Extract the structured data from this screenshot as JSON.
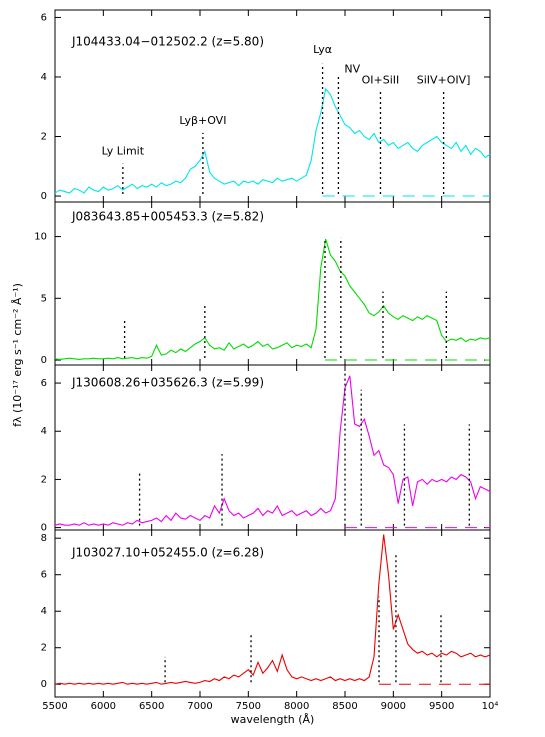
{
  "ylabel": "fλ (10⁻¹⁷ erg s⁻¹ cm⁻² Å⁻¹)",
  "chart_data": [
    {
      "type": "line",
      "title": "J104433.04−012502.2 (z=5.80)",
      "ylim": [
        -0.2,
        6.25
      ],
      "yticks": [
        0,
        2,
        4,
        6
      ],
      "lines": [
        6202,
        7030,
        8268,
        8432,
        8867,
        9520
      ],
      "line_labels": [
        "Ly Limit",
        "Lyβ+OVI",
        "Lyα",
        "NV",
        "OI+SiII",
        "SiIV+OIV]"
      ],
      "x": [
        5500,
        5550,
        5600,
        5650,
        5700,
        5750,
        5800,
        5850,
        5900,
        5950,
        6000,
        6050,
        6100,
        6150,
        6200,
        6250,
        6300,
        6350,
        6400,
        6450,
        6500,
        6550,
        6600,
        6650,
        6700,
        6750,
        6800,
        6850,
        6900,
        6950,
        7000,
        7050,
        7100,
        7150,
        7200,
        7250,
        7300,
        7350,
        7400,
        7450,
        7500,
        7550,
        7600,
        7650,
        7700,
        7750,
        7800,
        7850,
        7900,
        7950,
        8000,
        8050,
        8100,
        8150,
        8200,
        8250,
        8300,
        8350,
        8400,
        8450,
        8500,
        8550,
        8600,
        8650,
        8700,
        8750,
        8800,
        8850,
        8900,
        8950,
        9000,
        9050,
        9100,
        9150,
        9200,
        9250,
        9300,
        9350,
        9400,
        9450,
        9500,
        9550,
        9600,
        9650,
        9700,
        9750,
        9800,
        9850,
        9900,
        9950,
        10000
      ],
      "series": [
        {
          "color": "#00e5ee",
          "values": [
            0.1,
            0.2,
            0.15,
            0.1,
            0.25,
            0.2,
            0.1,
            0.3,
            0.2,
            0.15,
            0.3,
            0.2,
            0.25,
            0.35,
            0.2,
            0.3,
            0.4,
            0.25,
            0.35,
            0.3,
            0.4,
            0.3,
            0.45,
            0.35,
            0.4,
            0.5,
            0.45,
            0.6,
            0.9,
            1.0,
            1.2,
            1.5,
            0.8,
            0.6,
            0.5,
            0.4,
            0.45,
            0.5,
            0.35,
            0.5,
            0.45,
            0.5,
            0.4,
            0.55,
            0.5,
            0.45,
            0.6,
            0.5,
            0.55,
            0.6,
            0.5,
            0.6,
            0.7,
            1.2,
            2.2,
            2.8,
            3.6,
            3.4,
            3.0,
            2.7,
            2.4,
            2.3,
            2.1,
            2.2,
            2.0,
            1.9,
            2.1,
            1.8,
            1.9,
            1.7,
            1.8,
            1.6,
            1.7,
            1.8,
            1.6,
            1.5,
            1.7,
            1.8,
            1.9,
            2.0,
            1.8,
            1.7,
            1.6,
            1.8,
            1.5,
            1.7,
            1.4,
            1.6,
            1.5,
            1.3,
            1.4
          ]
        }
      ]
    },
    {
      "type": "line",
      "title": "J083643.85+005453.3 (z=5.82)",
      "ylim": [
        -0.4,
        12.8
      ],
      "yticks": [
        0,
        5,
        10
      ],
      "lines": [
        6220,
        7050,
        8293,
        8457,
        8893,
        9548
      ],
      "x": [
        5500,
        5550,
        5600,
        5650,
        5700,
        5750,
        5800,
        5850,
        5900,
        5950,
        6000,
        6050,
        6100,
        6150,
        6200,
        6250,
        6300,
        6350,
        6400,
        6450,
        6500,
        6550,
        6600,
        6650,
        6700,
        6750,
        6800,
        6850,
        6900,
        6950,
        7000,
        7050,
        7100,
        7150,
        7200,
        7250,
        7300,
        7350,
        7400,
        7450,
        7500,
        7550,
        7600,
        7650,
        7700,
        7750,
        7800,
        7850,
        7900,
        7950,
        8000,
        8050,
        8100,
        8150,
        8200,
        8250,
        8300,
        8350,
        8400,
        8450,
        8500,
        8550,
        8600,
        8650,
        8700,
        8750,
        8800,
        8850,
        8900,
        8950,
        9000,
        9050,
        9100,
        9150,
        9200,
        9250,
        9300,
        9350,
        9400,
        9450,
        9500,
        9550,
        9600,
        9650,
        9700,
        9750,
        9800,
        9850,
        9900,
        9950,
        10000
      ],
      "series": [
        {
          "color": "#00dd00",
          "values": [
            0.1,
            0.05,
            0.1,
            0.15,
            0.1,
            0.05,
            0.1,
            0.1,
            0.15,
            0.1,
            0.1,
            0.15,
            0.1,
            0.2,
            0.1,
            0.15,
            0.2,
            0.1,
            0.2,
            0.15,
            0.3,
            1.2,
            0.4,
            0.5,
            0.8,
            0.6,
            0.9,
            0.7,
            1.0,
            1.3,
            1.5,
            1.8,
            1.2,
            0.9,
            1.0,
            0.8,
            1.4,
            0.9,
            1.1,
            1.3,
            1.0,
            1.2,
            1.5,
            1.1,
            1.3,
            0.9,
            1.0,
            1.2,
            1.4,
            1.0,
            1.2,
            1.1,
            1.3,
            1.0,
            2.5,
            7.5,
            9.8,
            8.5,
            8.0,
            7.2,
            6.8,
            6.0,
            5.5,
            5.0,
            4.5,
            3.8,
            3.6,
            3.9,
            4.4,
            3.8,
            3.5,
            3.3,
            3.6,
            3.4,
            3.2,
            3.5,
            3.3,
            3.6,
            3.4,
            3.2,
            2.0,
            1.5,
            1.7,
            1.6,
            1.8,
            1.5,
            1.7,
            1.6,
            1.8,
            1.7,
            1.8
          ]
        }
      ]
    },
    {
      "type": "line",
      "title": "J130608.26+035626.3 (z=5.99)",
      "ylim": [
        -0.1,
        6.75
      ],
      "yticks": [
        0,
        2,
        4,
        6
      ],
      "lines": [
        6375,
        7228,
        8500,
        8668,
        9115,
        9786
      ],
      "x": [
        5500,
        5550,
        5600,
        5650,
        5700,
        5750,
        5800,
        5850,
        5900,
        5950,
        6000,
        6050,
        6100,
        6150,
        6200,
        6250,
        6300,
        6350,
        6400,
        6450,
        6500,
        6550,
        6600,
        6650,
        6700,
        6750,
        6800,
        6850,
        6900,
        6950,
        7000,
        7050,
        7100,
        7150,
        7200,
        7250,
        7300,
        7350,
        7400,
        7450,
        7500,
        7550,
        7600,
        7650,
        7700,
        7750,
        7800,
        7850,
        7900,
        7950,
        8000,
        8050,
        8100,
        8150,
        8200,
        8250,
        8300,
        8350,
        8400,
        8450,
        8500,
        8550,
        8600,
        8650,
        8700,
        8750,
        8800,
        8850,
        8900,
        8950,
        9000,
        9050,
        9100,
        9150,
        9200,
        9250,
        9300,
        9350,
        9400,
        9450,
        9500,
        9550,
        9600,
        9650,
        9700,
        9750,
        9800,
        9850,
        9900,
        9950,
        10000
      ],
      "series": [
        {
          "color": "#ee00ee",
          "values": [
            0.1,
            0.15,
            0.1,
            0.1,
            0.15,
            0.1,
            0.2,
            0.1,
            0.15,
            0.1,
            0.15,
            0.1,
            0.2,
            0.15,
            0.1,
            0.2,
            0.15,
            0.3,
            0.2,
            0.25,
            0.3,
            0.4,
            0.25,
            0.5,
            0.3,
            0.6,
            0.4,
            0.35,
            0.5,
            0.4,
            0.3,
            0.5,
            0.4,
            0.9,
            0.6,
            1.2,
            0.7,
            0.5,
            0.6,
            0.4,
            0.5,
            0.6,
            0.8,
            0.5,
            0.7,
            0.6,
            0.9,
            0.5,
            0.6,
            0.7,
            0.5,
            0.6,
            0.7,
            0.5,
            0.6,
            0.8,
            0.6,
            0.7,
            1.2,
            4.0,
            5.8,
            6.3,
            4.3,
            4.2,
            4.5,
            3.8,
            3.0,
            3.2,
            2.6,
            2.5,
            2.2,
            1.0,
            2.0,
            2.1,
            0.9,
            1.9,
            2.0,
            1.8,
            2.0,
            1.9,
            2.0,
            1.9,
            2.1,
            2.0,
            2.2,
            2.1,
            1.9,
            1.2,
            1.7,
            1.6,
            1.5
          ]
        }
      ]
    },
    {
      "type": "line",
      "title": "J103027.10+052455.0 (z=6.28)",
      "xlabel": "wavelength (Å)",
      "xlim": [
        5500,
        10000
      ],
      "xticks": [
        5500,
        6000,
        6500,
        7000,
        7500,
        8000,
        8500,
        9000,
        9500,
        {
          "value": 10000,
          "label": "10⁴"
        }
      ],
      "ylim": [
        -0.7,
        8.45
      ],
      "yticks": [
        0,
        2,
        4,
        6,
        8
      ],
      "lines": [
        6639,
        7528,
        8852,
        9027,
        9493
      ],
      "x": [
        5500,
        5550,
        5600,
        5650,
        5700,
        5750,
        5800,
        5850,
        5900,
        5950,
        6000,
        6050,
        6100,
        6150,
        6200,
        6250,
        6300,
        6350,
        6400,
        6450,
        6500,
        6550,
        6600,
        6650,
        6700,
        6750,
        6800,
        6850,
        6900,
        6950,
        7000,
        7050,
        7100,
        7150,
        7200,
        7250,
        7300,
        7350,
        7400,
        7450,
        7500,
        7550,
        7600,
        7650,
        7700,
        7750,
        7800,
        7850,
        7900,
        7950,
        8000,
        8050,
        8100,
        8150,
        8200,
        8250,
        8300,
        8350,
        8400,
        8450,
        8500,
        8550,
        8600,
        8650,
        8700,
        8750,
        8800,
        8850,
        8900,
        8950,
        9000,
        9050,
        9100,
        9150,
        9200,
        9250,
        9300,
        9350,
        9400,
        9450,
        9500,
        9550,
        9600,
        9650,
        9700,
        9750,
        9800,
        9850,
        9900,
        9950,
        10000
      ],
      "series": [
        {
          "color": "#ee0000",
          "values": [
            0.0,
            0.05,
            0.0,
            0.05,
            0.0,
            0.05,
            0.0,
            0.05,
            0.0,
            0.05,
            0.0,
            0.05,
            0.0,
            0.05,
            0.1,
            0.0,
            0.05,
            0.0,
            0.05,
            0.0,
            0.05,
            0.1,
            0.0,
            0.05,
            0.1,
            0.05,
            0.1,
            0.15,
            0.1,
            0.05,
            0.1,
            0.2,
            0.15,
            0.3,
            0.2,
            0.4,
            0.3,
            0.5,
            0.4,
            0.6,
            0.8,
            0.5,
            1.2,
            0.6,
            0.9,
            1.3,
            0.7,
            1.6,
            0.8,
            0.4,
            0.3,
            0.4,
            0.3,
            0.2,
            0.3,
            0.2,
            0.3,
            0.4,
            0.2,
            0.3,
            0.2,
            0.3,
            0.2,
            0.3,
            0.2,
            0.4,
            1.5,
            5.5,
            8.2,
            6.0,
            3.0,
            3.8,
            3.0,
            2.2,
            1.9,
            1.7,
            1.8,
            1.6,
            1.7,
            1.5,
            1.7,
            1.6,
            1.8,
            1.7,
            1.5,
            1.6,
            1.7,
            1.5,
            1.6,
            1.5,
            1.6
          ]
        }
      ]
    }
  ]
}
